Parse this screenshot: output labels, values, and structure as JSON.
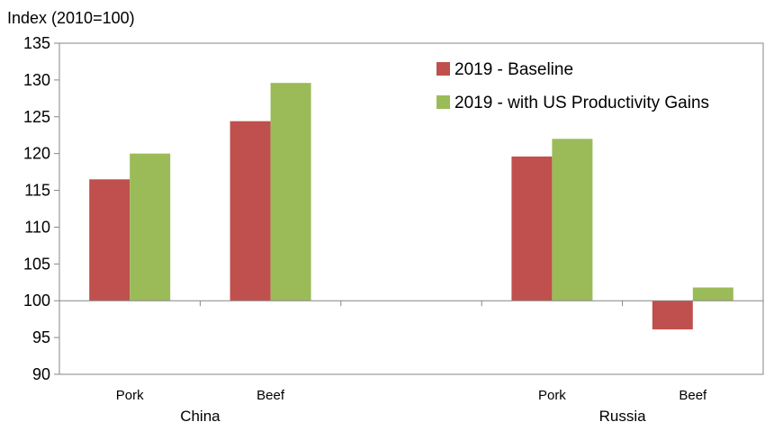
{
  "chart_data": {
    "type": "bar",
    "ylabel": "Index (2010=100)",
    "ylim": [
      90,
      135
    ],
    "yticks": [
      90,
      95,
      100,
      105,
      110,
      115,
      120,
      125,
      130,
      135
    ],
    "baseline": 100,
    "grid": false,
    "legend_position": "top-right",
    "groups": [
      {
        "name": "China",
        "categories": [
          "Pork",
          "Beef"
        ]
      },
      {
        "name": "",
        "categories": [
          ""
        ]
      },
      {
        "name": "Russia",
        "categories": [
          "Pork",
          "Beef"
        ]
      }
    ],
    "series": [
      {
        "name": "2019 - Baseline",
        "color": "#c0504d",
        "values": [
          116.5,
          124.4,
          null,
          119.6,
          96.1
        ]
      },
      {
        "name": "2019 - with US Productivity Gains",
        "color": "#9bbb59",
        "values": [
          120.0,
          129.6,
          null,
          122.0,
          101.8
        ]
      }
    ]
  }
}
